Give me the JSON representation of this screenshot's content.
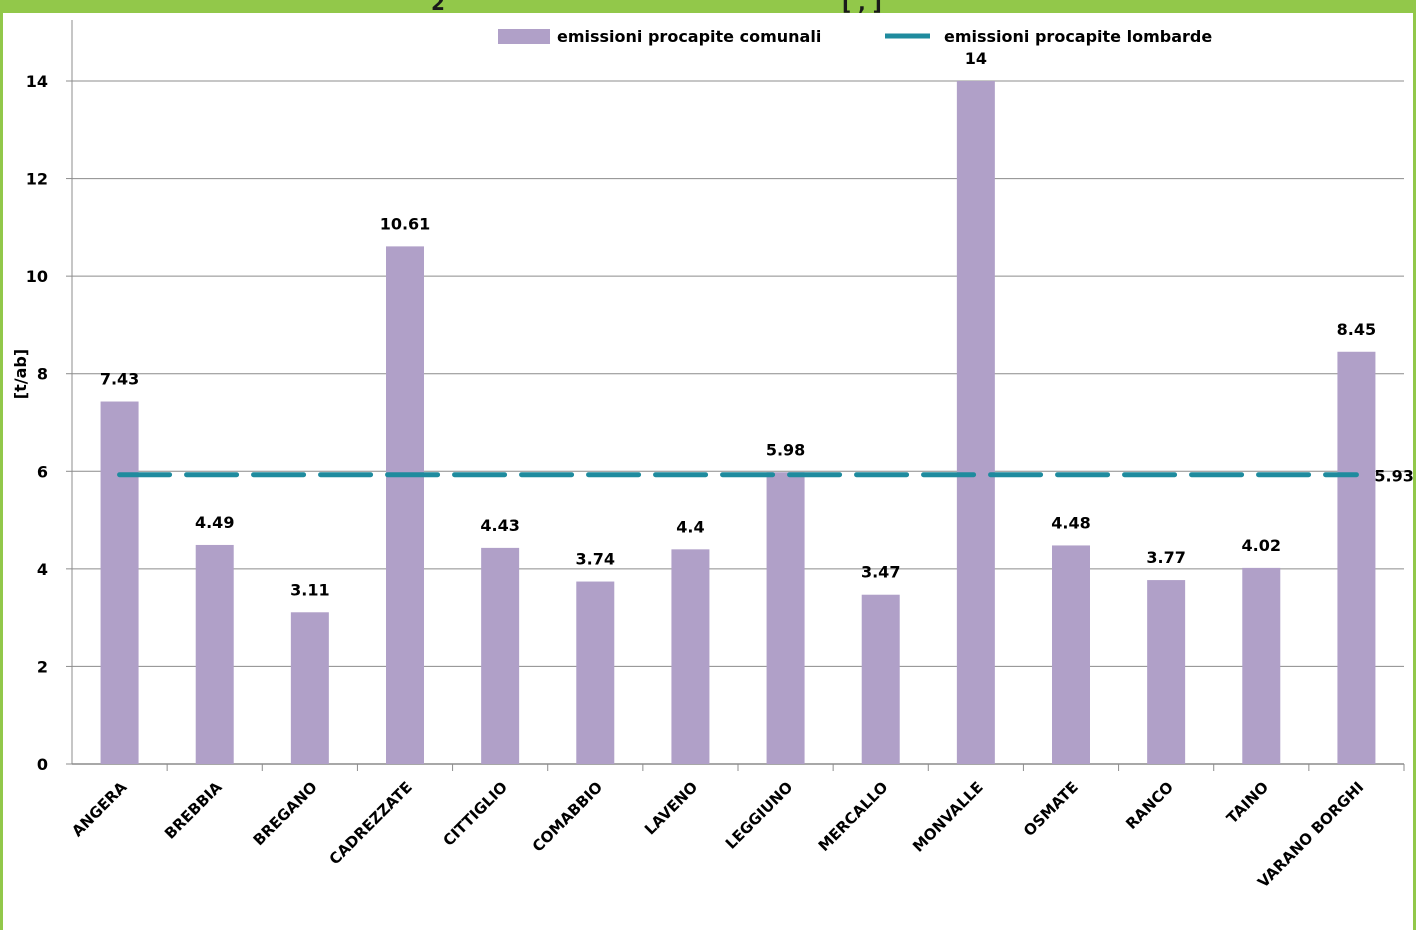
{
  "header": {
    "title_fragment": "2",
    "title_fragment_2": "[ , ]"
  },
  "colors": {
    "frame": "#92c84a",
    "bar": "#b0a0c8",
    "reference_line": "#1f8b9e",
    "grid": "#8c8c8c"
  },
  "chart_data": {
    "type": "bar",
    "ylabel": "[t/ab]",
    "xlabel": "",
    "ylim": [
      0,
      15
    ],
    "yticks": [
      0,
      2,
      4,
      6,
      8,
      10,
      12,
      14
    ],
    "grid": true,
    "legend_position": "top",
    "categories": [
      "ANGERA",
      "BREBBIA",
      "BREGANO",
      "CADREZZATE",
      "CITTIGLIO",
      "COMABBIO",
      "LAVENO",
      "LEGGIUNO",
      "MERCALLO",
      "MONVALLE",
      "OSMATE",
      "RANCO",
      "TAINO",
      "VARANO BORGHI"
    ],
    "series": [
      {
        "name": "emissioni procapite comunali",
        "type": "bar",
        "values": [
          7.43,
          4.49,
          3.11,
          10.61,
          4.43,
          3.74,
          4.4,
          5.98,
          3.47,
          14,
          4.48,
          3.77,
          4.02,
          8.45
        ],
        "labels": [
          "7.43",
          "4.49",
          "3.11",
          "10.61",
          "4.43",
          "3.74",
          "4.4",
          "5.98",
          "3.47",
          "14",
          "4.48",
          "3.77",
          "4.02",
          "8.45"
        ]
      },
      {
        "name": "emissioni procapite lombarde",
        "type": "line",
        "style": "dashed",
        "value": 5.93,
        "label": "5.93"
      }
    ]
  }
}
